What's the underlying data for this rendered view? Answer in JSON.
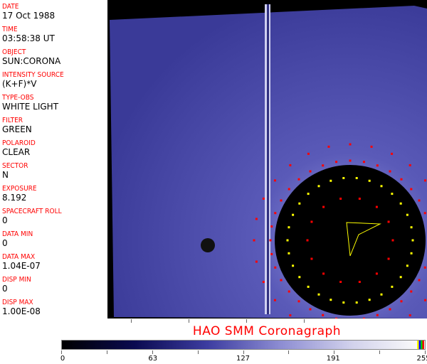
{
  "header_fields": [
    {
      "label": "DATE",
      "value": "17 Oct 1988"
    },
    {
      "label": "TIME",
      "value": "03:58:38 UT"
    },
    {
      "label": "OBJECT",
      "value": "SUN:CORONA"
    },
    {
      "label": "INTENSITY SOURCE",
      "value": "(K+F)*V"
    },
    {
      "label": "TYPE-OBS",
      "value": "WHITE LIGHT"
    },
    {
      "label": "FILTER",
      "value": "GREEN"
    },
    {
      "label": "POLAROID",
      "value": "CLEAR"
    },
    {
      "label": "SECTOR",
      "value": "N"
    },
    {
      "label": "EXPOSURE",
      "value": "8.192"
    },
    {
      "label": "SPACECRAFT ROLL",
      "value": "0"
    },
    {
      "label": "DATA MIN",
      "value": "0"
    },
    {
      "label": "DATA MAX",
      "value": "1.04E-07"
    },
    {
      "label": "DISP MIN",
      "value": "0"
    },
    {
      "label": "DISP MAX",
      "value": "1.00E-08"
    }
  ],
  "title": "HAO  SMM  Coronagraph",
  "colorbar": {
    "ticks": [
      "0",
      "63",
      "127",
      "191",
      "255"
    ],
    "colors": {
      "low": "#000000",
      "mid": "#3c3ca0",
      "high": "#fafafa",
      "markers": [
        "#ffff00",
        "#0000ff",
        "#00c000",
        "#ff0000"
      ]
    }
  },
  "colors": {
    "label": "#ff0000",
    "image_tint": "#5050b4",
    "overlay_red": "#ff0000",
    "overlay_yellow": "#ffff00"
  }
}
